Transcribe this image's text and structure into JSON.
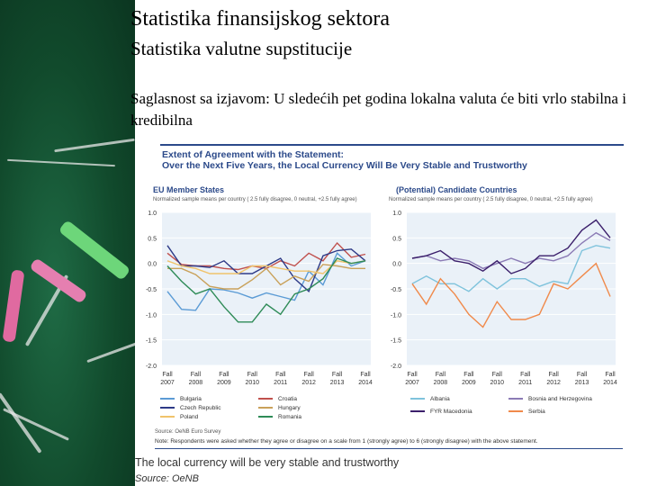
{
  "slide": {
    "title": "Statistika finansijskog sektora",
    "subtitle": "Statistika valutne supstitucije",
    "text": "Saglasnost sa izjavom: U sledećih pet godina lokalna valuta će biti vrlo stabilna i kredibilna"
  },
  "figure": {
    "title_line1": "Extent of Agreement with the Statement:",
    "title_line2": "Over the Next Five Years, the Local Currency Will Be Very Stable and Trustworthy",
    "source_small": "Source: OeNB Euro Survey",
    "note": "Note: Respondents were asked whether they agree or disagree on a scale from 1 (strongly agree) to 6 (strongly disagree) with the above statement.",
    "caption": "The local currency will be very stable and trustworthy",
    "source": "Source: OeNB"
  },
  "chart_data": [
    {
      "type": "line",
      "title": "EU Member States",
      "subtitle": "Normalized sample means per country ( 2.5 fully disagree, 0 neutral, +2.5 fully agree)",
      "ylim": [
        -2.0,
        1.0
      ],
      "yticks": [
        "1.0",
        "0.5",
        "0.0",
        "-0.5",
        "-1.0",
        "-1.5",
        "-2.0"
      ],
      "tick_labels": [
        [
          "Fall",
          "2007"
        ],
        [
          "Fall",
          "2008"
        ],
        [
          "Fall",
          "2009"
        ],
        [
          "Fall",
          "2010"
        ],
        [
          "Fall",
          "2011"
        ],
        [
          "Fall",
          "2012"
        ],
        [
          "Fall",
          "2013"
        ],
        [
          "Fall",
          "2014"
        ]
      ],
      "n_points": 15,
      "series": [
        {
          "name": "Bulgaria",
          "color": "#5b9bd5",
          "values": [
            -0.55,
            -0.9,
            -0.92,
            -0.5,
            -0.52,
            -0.58,
            -0.68,
            -0.58,
            -0.65,
            -0.72,
            -0.15,
            -0.42,
            0.2,
            -0.05,
            0.05
          ]
        },
        {
          "name": "Croatia",
          "color": "#c0504d",
          "values": [
            0.2,
            -0.02,
            -0.05,
            -0.05,
            -0.1,
            -0.12,
            -0.05,
            -0.1,
            0.05,
            -0.05,
            0.2,
            0.05,
            0.4,
            0.12,
            0.18
          ]
        },
        {
          "name": "Czech Republic",
          "color": "#2e3a87",
          "values": [
            0.35,
            -0.05,
            -0.05,
            -0.08,
            0.05,
            -0.2,
            -0.2,
            -0.05,
            0.1,
            -0.3,
            -0.55,
            0.15,
            0.25,
            0.28,
            0.05
          ]
        },
        {
          "name": "Hungary",
          "color": "#c9a15a",
          "values": [
            -0.1,
            -0.1,
            -0.22,
            -0.45,
            -0.5,
            -0.5,
            -0.32,
            -0.1,
            -0.42,
            -0.25,
            -0.35,
            -0.02,
            -0.05,
            -0.1,
            -0.1
          ]
        },
        {
          "name": "Poland",
          "color": "#f0c36b",
          "values": [
            0.05,
            -0.05,
            -0.1,
            -0.2,
            -0.2,
            -0.2,
            -0.05,
            -0.05,
            -0.1,
            -0.15,
            -0.15,
            -0.2,
            0.05,
            0.0,
            0.05
          ]
        },
        {
          "name": "Romania",
          "color": "#2e8b57",
          "values": [
            -0.05,
            -0.35,
            -0.6,
            -0.5,
            -0.85,
            -1.15,
            -1.15,
            -0.8,
            -1.0,
            -0.6,
            -0.5,
            -0.3,
            0.1,
            0.0,
            0.05
          ]
        }
      ]
    },
    {
      "type": "line",
      "title": "(Potential) Candidate Countries",
      "subtitle": "Normalized sample means per country ( 2.5 fully disagree, 0 neutral, +2.5 fully agree)",
      "ylim": [
        -2.0,
        1.0
      ],
      "yticks": [
        "1.0",
        "0.5",
        "0.0",
        "-0.5",
        "-1.0",
        "-1.5",
        "-2.0"
      ],
      "tick_labels": [
        [
          "Fall",
          "2007"
        ],
        [
          "Fall",
          "2008"
        ],
        [
          "Fall",
          "2009"
        ],
        [
          "Fall",
          "2010"
        ],
        [
          "Fall",
          "2011"
        ],
        [
          "Fall",
          "2012"
        ],
        [
          "Fall",
          "2013"
        ],
        [
          "Fall",
          "2014"
        ]
      ],
      "n_points": 15,
      "series": [
        {
          "name": "Albania",
          "color": "#7fc3dc",
          "values": [
            -0.4,
            -0.25,
            -0.4,
            -0.4,
            -0.55,
            -0.3,
            -0.5,
            -0.3,
            -0.3,
            -0.45,
            -0.35,
            -0.4,
            0.25,
            0.35,
            0.3
          ]
        },
        {
          "name": "Bosnia and Herzegovina",
          "color": "#8b7bb5",
          "values": [
            0.1,
            0.15,
            0.05,
            0.1,
            0.05,
            -0.1,
            0.0,
            0.1,
            0.0,
            0.1,
            0.05,
            0.15,
            0.4,
            0.6,
            0.45
          ]
        },
        {
          "name": "FYR Macedonia",
          "color": "#3b1f6b",
          "values": [
            0.1,
            0.15,
            0.25,
            0.05,
            0.0,
            -0.15,
            0.05,
            -0.2,
            -0.1,
            0.15,
            0.15,
            0.3,
            0.65,
            0.85,
            0.5
          ]
        },
        {
          "name": "Serbia",
          "color": "#f08a4b",
          "values": [
            -0.4,
            -0.8,
            -0.3,
            -0.6,
            -1.0,
            -1.25,
            -0.75,
            -1.1,
            -1.1,
            -1.0,
            -0.4,
            -0.5,
            -0.25,
            0.0,
            -0.65
          ]
        }
      ]
    }
  ]
}
